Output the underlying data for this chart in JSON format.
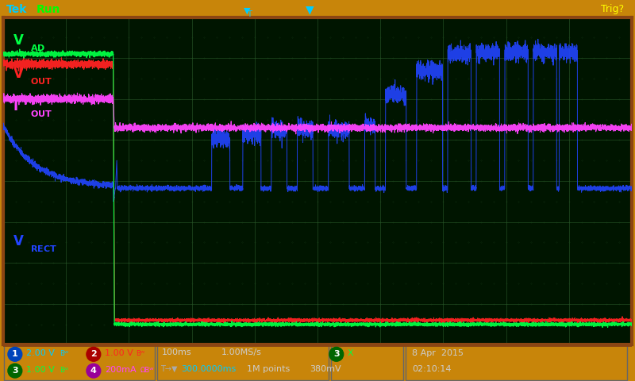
{
  "screen_bg": "#001500",
  "fig_bg": "#c8850a",
  "grid_color": "#2a5a2a",
  "border_color": "#8B4513",
  "top_bar_bg": "#1a1a1a",
  "bot_bar_bg": "#1a1a1a",
  "ch1_color": "#2244ff",
  "ch2_color": "#ff2222",
  "ch3_color": "#00ff44",
  "ch4_color": "#ff44ff",
  "ch1_label": "1",
  "ch2_label": "2",
  "ch3_label": "3",
  "ch4_label": "4",
  "ch1_scale": "2.00 V",
  "ch2_scale": "1.00 V",
  "ch3_scale": "1.00 V",
  "ch4_scale": "200mA",
  "tek_color": "#00ccff",
  "run_color": "#00ff00",
  "trig_color": "#ffff00",
  "transition_x": 1.75,
  "xlim": [
    0,
    10
  ],
  "ylim": [
    -4,
    4
  ]
}
